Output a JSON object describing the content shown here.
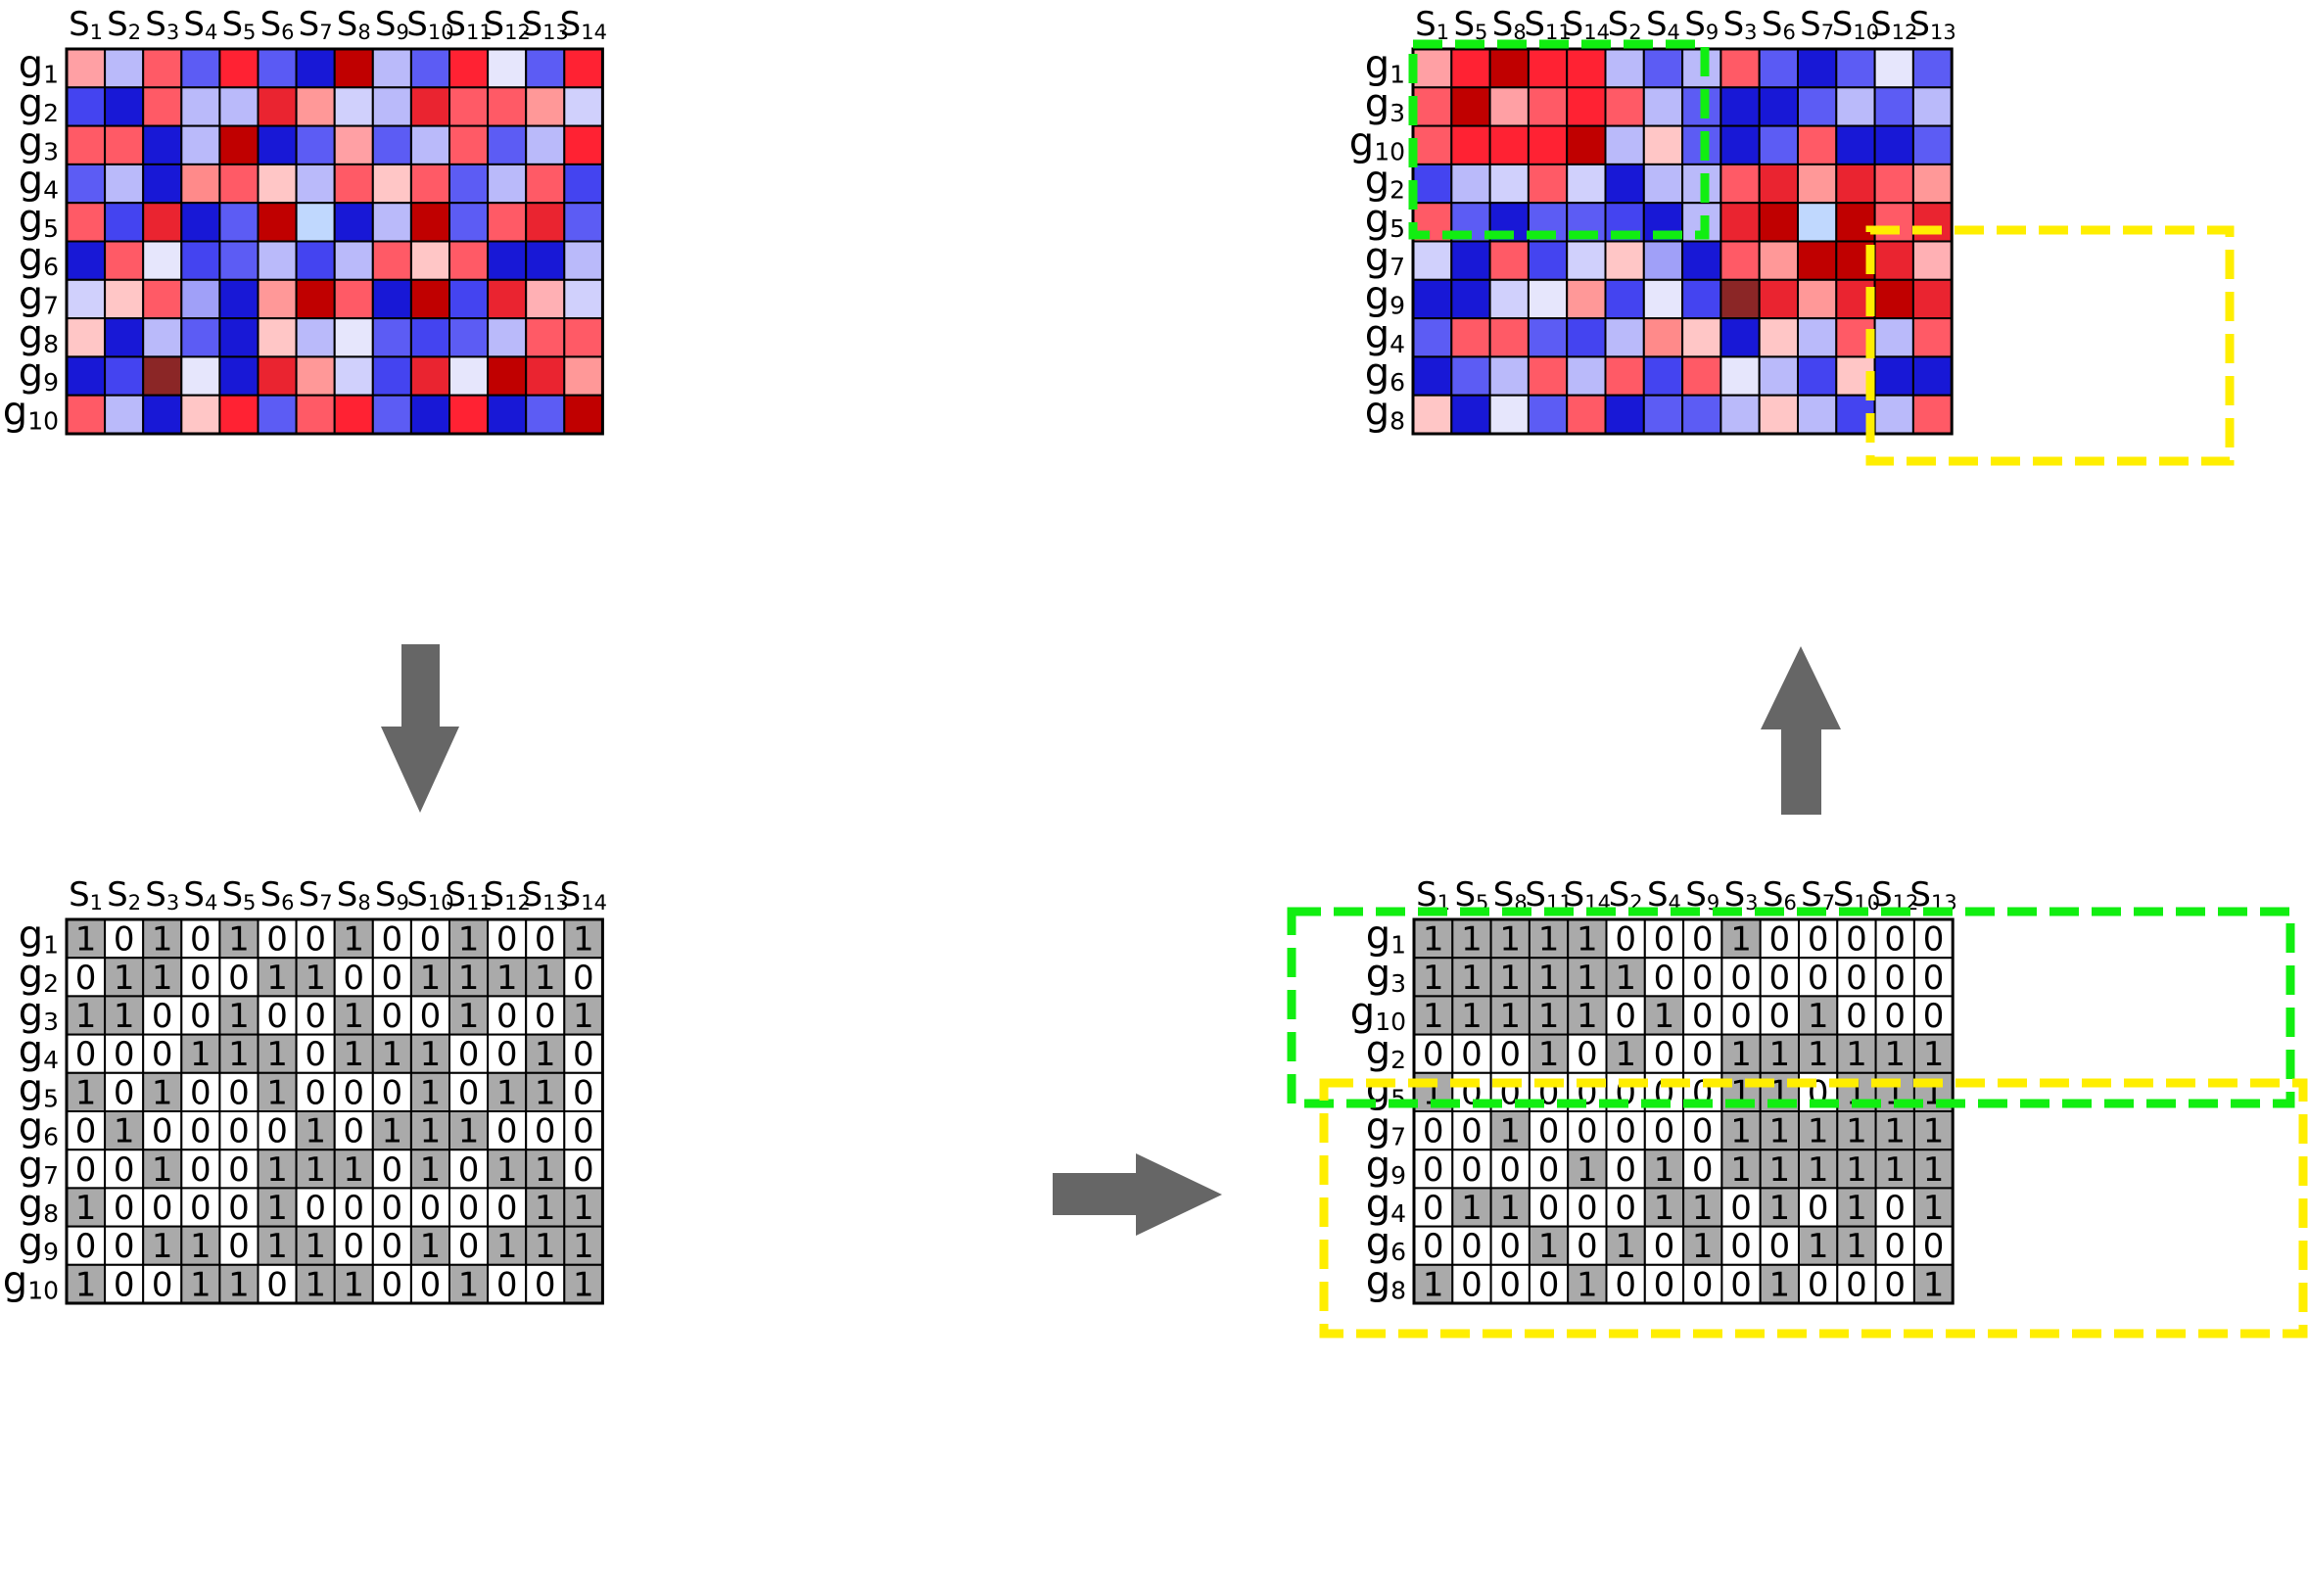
{
  "panels": {
    "expression_original": {
      "cols": [
        "S1",
        "S2",
        "S3",
        "S4",
        "S5",
        "S6",
        "S7",
        "S8",
        "S9",
        "S10",
        "S11",
        "S12",
        "S13",
        "S14"
      ],
      "rows": [
        "g1",
        "g2",
        "g3",
        "g4",
        "g5",
        "g6",
        "g7",
        "g8",
        "g9",
        "g10"
      ],
      "colors": [
        [
          "#ffa0a4",
          "#babafa",
          "#ff5a66",
          "#5c5cf4",
          "#ff2233",
          "#5a5af4",
          "#1818d6",
          "#c00000",
          "#babafa",
          "#5c5cf4",
          "#ff2233",
          "#e6e6fc",
          "#5c5cf4",
          "#ff2233"
        ],
        [
          "#4444f0",
          "#1818d6",
          "#ff5a66",
          "#babafa",
          "#babafa",
          "#ea2430",
          "#ff9898",
          "#d0d0fc",
          "#babafa",
          "#ea2430",
          "#ff5a66",
          "#ff5a66",
          "#ff9898",
          "#d0d0fc"
        ],
        [
          "#ff5a66",
          "#ff5a66",
          "#1818d6",
          "#babafa",
          "#c00000",
          "#1818d6",
          "#5c5cf4",
          "#ffa0a4",
          "#5c5cf4",
          "#babafa",
          "#ff5a66",
          "#5c5cf4",
          "#babafa",
          "#ff2233"
        ],
        [
          "#5c5cf4",
          "#babafa",
          "#1818d6",
          "#ff8a8a",
          "#ff5a66",
          "#ffc6c6",
          "#babafa",
          "#ff5a66",
          "#ffc6c6",
          "#ff5a66",
          "#5c5cf4",
          "#babafa",
          "#ff5a66",
          "#4444f0"
        ],
        [
          "#ff5a66",
          "#4444f0",
          "#ea2430",
          "#1818d6",
          "#5c5cf4",
          "#c00000",
          "#c0d8fe",
          "#1818d6",
          "#babafa",
          "#c00000",
          "#5c5cf4",
          "#ff5a66",
          "#ea2430",
          "#5c5cf4"
        ],
        [
          "#1818d6",
          "#ff5a66",
          "#e6e6fc",
          "#4444f0",
          "#5c5cf4",
          "#babafa",
          "#4444f0",
          "#babafa",
          "#ff5a66",
          "#ffc6c6",
          "#ff5a66",
          "#1818d6",
          "#1818d6",
          "#babafa"
        ],
        [
          "#d0d0fc",
          "#ffc6c6",
          "#ff5a66",
          "#a0a0f8",
          "#1818d6",
          "#ff9898",
          "#c00000",
          "#ff5a66",
          "#1818d6",
          "#c00000",
          "#4444f0",
          "#ea2430",
          "#ffb0b4",
          "#d0d0fc"
        ],
        [
          "#ffc6c6",
          "#1818d6",
          "#babafa",
          "#5c5cf4",
          "#1818d6",
          "#ffc6c6",
          "#babafa",
          "#e6e6fc",
          "#5c5cf4",
          "#4444f0",
          "#5c5cf4",
          "#babafa",
          "#ff5a66",
          "#ff5a66"
        ],
        [
          "#1818d6",
          "#4444f0",
          "#8b2626",
          "#e6e6fc",
          "#1818d6",
          "#ea2430",
          "#ff9898",
          "#d0d0fc",
          "#4444f0",
          "#ea2430",
          "#e6e6fc",
          "#c00000",
          "#ea2430",
          "#ff9898"
        ],
        [
          "#ff5a66",
          "#babafa",
          "#1818d6",
          "#ffc6c6",
          "#ff2233",
          "#5c5cf4",
          "#ff5a66",
          "#ff2233",
          "#5c5cf4",
          "#1818d6",
          "#ff2233",
          "#1818d6",
          "#5c5cf4",
          "#c00000"
        ]
      ]
    },
    "expression_reordered": {
      "cols": [
        "S1",
        "S5",
        "S8",
        "S11",
        "S14",
        "S2",
        "S4",
        "S9",
        "S3",
        "S6",
        "S7",
        "S10",
        "S12",
        "S13"
      ],
      "rows": [
        "g1",
        "g3",
        "g10",
        "g2",
        "g5",
        "g7",
        "g9",
        "g4",
        "g6",
        "g8"
      ],
      "colors": [
        [
          "#ffa0a4",
          "#ff2233",
          "#c00000",
          "#ff2233",
          "#ff2233",
          "#babafa",
          "#5c5cf4",
          "#babafa",
          "#ff5a66",
          "#5a5af4",
          "#1818d6",
          "#5c5cf4",
          "#e6e6fc",
          "#5c5cf4"
        ],
        [
          "#ff5a66",
          "#c00000",
          "#ffa0a4",
          "#ff5a66",
          "#ff2233",
          "#ff5a66",
          "#babafa",
          "#5c5cf4",
          "#1818d6",
          "#1818d6",
          "#5c5cf4",
          "#babafa",
          "#5c5cf4",
          "#babafa"
        ],
        [
          "#ff5a66",
          "#ff2233",
          "#ff2233",
          "#ff2233",
          "#c00000",
          "#babafa",
          "#ffc6c6",
          "#5c5cf4",
          "#1818d6",
          "#5c5cf4",
          "#ff5a66",
          "#1818d6",
          "#1818d6",
          "#5c5cf4"
        ],
        [
          "#4444f0",
          "#babafa",
          "#d0d0fc",
          "#ff5a66",
          "#d0d0fc",
          "#1818d6",
          "#babafa",
          "#babafa",
          "#ff5a66",
          "#ea2430",
          "#ff9898",
          "#ea2430",
          "#ff5a66",
          "#ff9898"
        ],
        [
          "#ff5a66",
          "#5c5cf4",
          "#1818d6",
          "#5c5cf4",
          "#5c5cf4",
          "#4444f0",
          "#1818d6",
          "#babafa",
          "#ea2430",
          "#c00000",
          "#c0d8fe",
          "#c00000",
          "#ff5a66",
          "#ea2430"
        ],
        [
          "#d0d0fc",
          "#1818d6",
          "#ff5a66",
          "#4444f0",
          "#d0d0fc",
          "#ffc6c6",
          "#a0a0f8",
          "#1818d6",
          "#ff5a66",
          "#ff9898",
          "#c00000",
          "#c00000",
          "#ea2430",
          "#ffb0b4"
        ],
        [
          "#1818d6",
          "#1818d6",
          "#d0d0fc",
          "#e6e6fc",
          "#ff9898",
          "#4444f0",
          "#e6e6fc",
          "#4444f0",
          "#8b2626",
          "#ea2430",
          "#ff9898",
          "#ea2430",
          "#c00000",
          "#ea2430"
        ],
        [
          "#5c5cf4",
          "#ff5a66",
          "#ff5a66",
          "#5c5cf4",
          "#4444f0",
          "#babafa",
          "#ff8a8a",
          "#ffc6c6",
          "#1818d6",
          "#ffc6c6",
          "#babafa",
          "#ff5a66",
          "#babafa",
          "#ff5a66"
        ],
        [
          "#1818d6",
          "#5c5cf4",
          "#babafa",
          "#ff5a66",
          "#babafa",
          "#ff5a66",
          "#4444f0",
          "#ff5a66",
          "#e6e6fc",
          "#babafa",
          "#4444f0",
          "#ffc6c6",
          "#1818d6",
          "#1818d6"
        ],
        [
          "#ffc6c6",
          "#1818d6",
          "#e6e6fc",
          "#5c5cf4",
          "#ff5a66",
          "#1818d6",
          "#5c5cf4",
          "#5c5cf4",
          "#babafa",
          "#ffc6c6",
          "#babafa",
          "#4444f0",
          "#babafa",
          "#ff5a66"
        ]
      ]
    },
    "binary_original": {
      "cols": [
        "S1",
        "S2",
        "S3",
        "S4",
        "S5",
        "S6",
        "S7",
        "S8",
        "S9",
        "S10",
        "S11",
        "S12",
        "S13",
        "S14"
      ],
      "rows": [
        "g1",
        "g2",
        "g3",
        "g4",
        "g5",
        "g6",
        "g7",
        "g8",
        "g9",
        "g10"
      ],
      "values": [
        [
          "1",
          "0",
          "1",
          "0",
          "1",
          "0",
          "0",
          "1",
          "0",
          "0",
          "1",
          "0",
          "0",
          "1"
        ],
        [
          "0",
          "1",
          "1",
          "0",
          "0",
          "1",
          "1",
          "0",
          "0",
          "1",
          "1",
          "1",
          "1",
          "0"
        ],
        [
          "1",
          "1",
          "0",
          "0",
          "1",
          "0",
          "0",
          "1",
          "0",
          "0",
          "1",
          "0",
          "0",
          "1"
        ],
        [
          "0",
          "0",
          "0",
          "1",
          "1",
          "1",
          "0",
          "1",
          "1",
          "1",
          "0",
          "0",
          "1",
          "0"
        ],
        [
          "1",
          "0",
          "1",
          "0",
          "0",
          "1",
          "0",
          "0",
          "0",
          "1",
          "0",
          "1",
          "1",
          "0"
        ],
        [
          "0",
          "1",
          "0",
          "0",
          "0",
          "0",
          "1",
          "0",
          "1",
          "1",
          "1",
          "0",
          "0",
          "0"
        ],
        [
          "0",
          "0",
          "1",
          "0",
          "0",
          "1",
          "1",
          "1",
          "0",
          "1",
          "0",
          "1",
          "1",
          "0"
        ],
        [
          "1",
          "0",
          "0",
          "0",
          "0",
          "1",
          "0",
          "0",
          "0",
          "0",
          "0",
          "0",
          "1",
          "1"
        ],
        [
          "0",
          "0",
          "1",
          "1",
          "0",
          "1",
          "1",
          "0",
          "0",
          "1",
          "0",
          "1",
          "1",
          "1"
        ],
        [
          "1",
          "0",
          "0",
          "1",
          "1",
          "0",
          "1",
          "1",
          "0",
          "0",
          "1",
          "0",
          "0",
          "1"
        ]
      ]
    },
    "binary_reordered": {
      "cols": [
        "S1",
        "S5",
        "S8",
        "S11",
        "S14",
        "S2",
        "S4",
        "S9",
        "S3",
        "S6",
        "S7",
        "S10",
        "S12",
        "S13"
      ],
      "rows": [
        "g1",
        "g3",
        "g10",
        "g2",
        "g5",
        "g7",
        "g9",
        "g4",
        "g6",
        "g8"
      ],
      "values": [
        [
          "1",
          "1",
          "1",
          "1",
          "1",
          "0",
          "0",
          "0",
          "1",
          "0",
          "0",
          "0",
          "0",
          "0"
        ],
        [
          "1",
          "1",
          "1",
          "1",
          "1",
          "1",
          "0",
          "0",
          "0",
          "0",
          "0",
          "0",
          "0",
          "0"
        ],
        [
          "1",
          "1",
          "1",
          "1",
          "1",
          "0",
          "1",
          "0",
          "0",
          "0",
          "1",
          "0",
          "0",
          "0"
        ],
        [
          "0",
          "0",
          "0",
          "1",
          "0",
          "1",
          "0",
          "0",
          "1",
          "1",
          "1",
          "1",
          "1",
          "1"
        ],
        [
          "1",
          "0",
          "0",
          "0",
          "0",
          "0",
          "0",
          "0",
          "1",
          "1",
          "0",
          "1",
          "1",
          "1"
        ],
        [
          "0",
          "0",
          "1",
          "0",
          "0",
          "0",
          "0",
          "0",
          "1",
          "1",
          "1",
          "1",
          "1",
          "1"
        ],
        [
          "0",
          "0",
          "0",
          "0",
          "1",
          "0",
          "1",
          "0",
          "1",
          "1",
          "1",
          "1",
          "1",
          "1"
        ],
        [
          "0",
          "1",
          "1",
          "0",
          "0",
          "0",
          "1",
          "1",
          "0",
          "1",
          "0",
          "1",
          "0",
          "1"
        ],
        [
          "0",
          "0",
          "0",
          "1",
          "0",
          "1",
          "0",
          "1",
          "0",
          "0",
          "1",
          "1",
          "0",
          "0"
        ],
        [
          "1",
          "0",
          "0",
          "0",
          "1",
          "0",
          "0",
          "0",
          "0",
          "1",
          "0",
          "0",
          "0",
          "1"
        ]
      ]
    }
  },
  "colors": {
    "grid_border": "#000000",
    "cell_one": "#aaaaaa",
    "cell_zero": "#ffffff",
    "arrow": "#666666",
    "bicluster_green": "#11ee11",
    "bicluster_yellow": "#ffee00"
  },
  "arrows": {
    "down": "arrow-down",
    "right": "arrow-right",
    "up": "arrow-up"
  }
}
